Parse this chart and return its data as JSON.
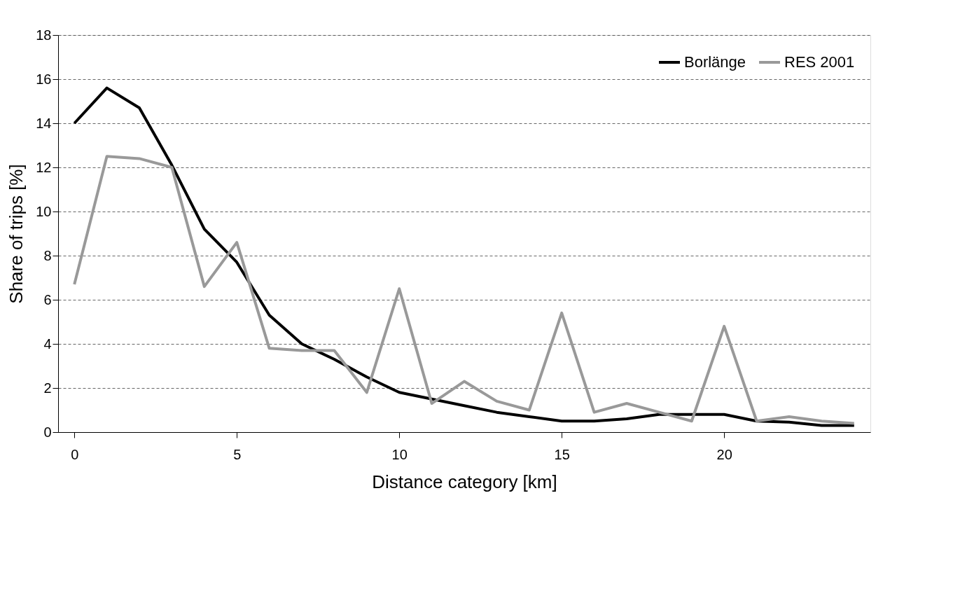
{
  "chart_data": {
    "type": "line",
    "xlabel": "Distance category [km]",
    "ylabel": "Share of trips [%]",
    "x": [
      0,
      1,
      2,
      3,
      4,
      5,
      6,
      7,
      8,
      9,
      10,
      11,
      12,
      13,
      14,
      15,
      16,
      17,
      18,
      19,
      20,
      21,
      22,
      23,
      24
    ],
    "series": [
      {
        "name": "Borlänge",
        "color": "#000000",
        "values": [
          14.0,
          15.6,
          14.7,
          12.1,
          9.2,
          7.7,
          5.3,
          4.0,
          3.3,
          2.5,
          1.8,
          1.5,
          1.2,
          0.9,
          0.7,
          0.5,
          0.5,
          0.6,
          0.8,
          0.8,
          0.8,
          0.5,
          0.45,
          0.3,
          0.3
        ]
      },
      {
        "name": "RES 2001",
        "color": "#999999",
        "values": [
          6.7,
          12.5,
          12.4,
          12.0,
          6.6,
          8.6,
          3.8,
          3.7,
          3.7,
          1.8,
          6.5,
          1.3,
          2.3,
          1.4,
          1.0,
          5.4,
          0.9,
          1.3,
          0.9,
          0.5,
          4.8,
          0.5,
          0.7,
          0.5,
          0.4
        ]
      }
    ],
    "xlim": [
      -0.5,
      24.5
    ],
    "xticks": [
      0,
      5,
      10,
      15,
      20
    ],
    "ylim": [
      0,
      18
    ],
    "yticks": [
      0,
      2,
      4,
      6,
      8,
      10,
      12,
      14,
      16,
      18
    ],
    "grid": "y",
    "legend": "top right",
    "marker": "none",
    "line_style": "solid"
  }
}
